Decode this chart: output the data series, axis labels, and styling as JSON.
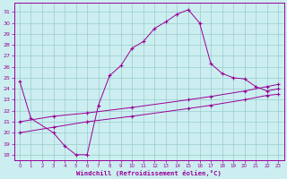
{
  "xlabel": "Windchill (Refroidissement éolien,°C)",
  "bg_color": "#cceef0",
  "line_color": "#990099",
  "grid_color": "#99cccc",
  "ylim": [
    17.5,
    31.8
  ],
  "xlim": [
    -0.5,
    23.5
  ],
  "yticks": [
    18,
    19,
    20,
    21,
    22,
    23,
    24,
    25,
    26,
    27,
    28,
    29,
    30,
    31
  ],
  "xticks": [
    0,
    1,
    2,
    3,
    4,
    5,
    6,
    7,
    8,
    9,
    10,
    11,
    12,
    13,
    14,
    15,
    16,
    17,
    18,
    19,
    20,
    21,
    22,
    23
  ],
  "line1_x": [
    0,
    1,
    3,
    4,
    5,
    6,
    7,
    8,
    9,
    10,
    11,
    12,
    13,
    14,
    15,
    16,
    17,
    18,
    19,
    20,
    21,
    22,
    23
  ],
  "line1_y": [
    24.7,
    21.3,
    20.0,
    18.8,
    18.0,
    18.0,
    22.5,
    25.2,
    26.1,
    27.7,
    28.3,
    29.5,
    30.1,
    30.8,
    31.2,
    30.0,
    26.3,
    25.4,
    25.0,
    24.9,
    24.2,
    23.8,
    24.0
  ],
  "line2_x": [
    0,
    3,
    6,
    10,
    15,
    17,
    20,
    22,
    23
  ],
  "line2_y": [
    21.0,
    21.5,
    21.8,
    22.3,
    23.0,
    23.3,
    23.8,
    24.2,
    24.4
  ],
  "line3_x": [
    0,
    3,
    6,
    10,
    15,
    17,
    20,
    22,
    23
  ],
  "line3_y": [
    20.0,
    20.5,
    21.0,
    21.5,
    22.2,
    22.5,
    23.0,
    23.4,
    23.5
  ]
}
